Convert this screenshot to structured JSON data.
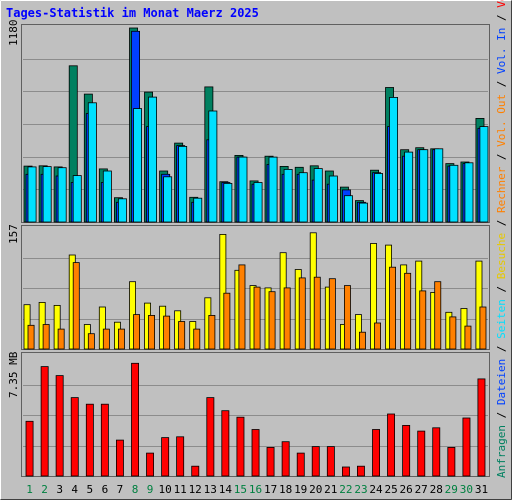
{
  "title": "Tages-Statistik im Monat Maerz 2025",
  "colors": {
    "background": "#c0c0c0",
    "border": "#808080",
    "gridline": "#8c8c8c",
    "title": "#0000ff",
    "label_green": "#008040",
    "anfragen": "#008060",
    "dateien": "#0040ff",
    "seiten": "#00e0ff",
    "besuche": "#ffff00",
    "rechner": "#ff8000",
    "volumen": "#ff0000"
  },
  "chart_data": [
    {
      "type": "bar",
      "panel": "top",
      "ymax_label": "1180",
      "ylim": [
        0,
        1180
      ],
      "grid": true,
      "series": [
        {
          "name": "Anfragen",
          "values": [
            340,
            342,
            335,
            950,
            778,
            323,
            148,
            1180,
            790,
            310,
            480,
            150,
            822,
            245,
            405,
            250,
            400,
            338,
            333,
            342,
            310,
            212,
            130,
            315,
            818,
            440,
            452,
            445,
            355,
            365,
            630
          ]
        },
        {
          "name": "Dateien",
          "values": [
            290,
            290,
            280,
            240,
            660,
            240,
            120,
            1160,
            580,
            290,
            465,
            120,
            500,
            240,
            395,
            230,
            350,
            290,
            290,
            255,
            230,
            195,
            120,
            300,
            580,
            400,
            440,
            440,
            340,
            355,
            570
          ]
        },
        {
          "name": "Seiten",
          "values": [
            335,
            337,
            330,
            282,
            725,
            310,
            141,
            690,
            760,
            275,
            460,
            145,
            675,
            235,
            395,
            240,
            395,
            320,
            300,
            325,
            280,
            160,
            115,
            295,
            758,
            425,
            440,
            445,
            345,
            360,
            580
          ]
        }
      ],
      "legend": [
        "Anfragen",
        "Dateien",
        "Seiten"
      ]
    },
    {
      "type": "bar",
      "panel": "middle",
      "ymax_label": "157",
      "ylim": [
        0,
        157
      ],
      "grid": true,
      "series": [
        {
          "name": "Besuche",
          "values": [
            58,
            61,
            57,
            123,
            32,
            55,
            35,
            88,
            60,
            56,
            50,
            36,
            67,
            150,
            103,
            83,
            80,
            126,
            104,
            152,
            81,
            32,
            45,
            138,
            136,
            110,
            115,
            74,
            48,
            53,
            115
          ]
        },
        {
          "name": "Rechner",
          "values": [
            31,
            32,
            26,
            113,
            20,
            26,
            26,
            45,
            44,
            43,
            36,
            26,
            44,
            73,
            110,
            81,
            75,
            80,
            93,
            94,
            92,
            83,
            22,
            34,
            107,
            99,
            76,
            88,
            42,
            30,
            55
          ]
        }
      ],
      "legend": [
        "Besuche",
        "Rechner"
      ]
    },
    {
      "type": "bar",
      "panel": "bottom",
      "ymax_label": "7.35 MB",
      "ylim": [
        0,
        7.35
      ],
      "grid": true,
      "series": [
        {
          "name": "Volumen",
          "values": [
            3.35,
            6.7,
            6.15,
            4.8,
            4.4,
            4.4,
            2.2,
            6.9,
            1.4,
            2.35,
            2.4,
            0.6,
            4.8,
            4.0,
            3.6,
            2.85,
            1.75,
            2.1,
            1.4,
            1.8,
            1.8,
            0.55,
            0.6,
            2.85,
            3.8,
            3.1,
            2.75,
            2.95,
            1.75,
            3.55,
            5.95
          ]
        }
      ],
      "legend": [
        "Volumen"
      ]
    }
  ],
  "x_labels": [
    "1",
    "2",
    "3",
    "4",
    "5",
    "6",
    "7",
    "8",
    "9",
    "10",
    "11",
    "12",
    "13",
    "14",
    "15",
    "16",
    "17",
    "18",
    "19",
    "20",
    "21",
    "22",
    "23",
    "24",
    "25",
    "26",
    "27",
    "28",
    "29",
    "30",
    "31"
  ],
  "weekend_days": [
    1,
    2,
    8,
    9,
    15,
    16,
    22,
    23,
    29,
    30
  ],
  "right_legend": [
    {
      "text": "Anfragen",
      "color": "#008060"
    },
    {
      "text": " / ",
      "color": "#000000"
    },
    {
      "text": "Dateien",
      "color": "#0040ff"
    },
    {
      "text": " / ",
      "color": "#000000"
    },
    {
      "text": "Seiten",
      "color": "#00e0ff"
    },
    {
      "text": " / ",
      "color": "#000000"
    },
    {
      "text": "Besuche",
      "color": "#e6c800"
    },
    {
      "text": " / ",
      "color": "#000000"
    },
    {
      "text": "Rechner",
      "color": "#ff8000"
    },
    {
      "text": " / ",
      "color": "#000000"
    },
    {
      "text": "Vol. Out",
      "color": "#ff8000"
    },
    {
      "text": " / ",
      "color": "#000000"
    },
    {
      "text": "Vol. In",
      "color": "#0040ff"
    },
    {
      "text": " / ",
      "color": "#000000"
    },
    {
      "text": "Volumen",
      "color": "#ff0000"
    }
  ]
}
